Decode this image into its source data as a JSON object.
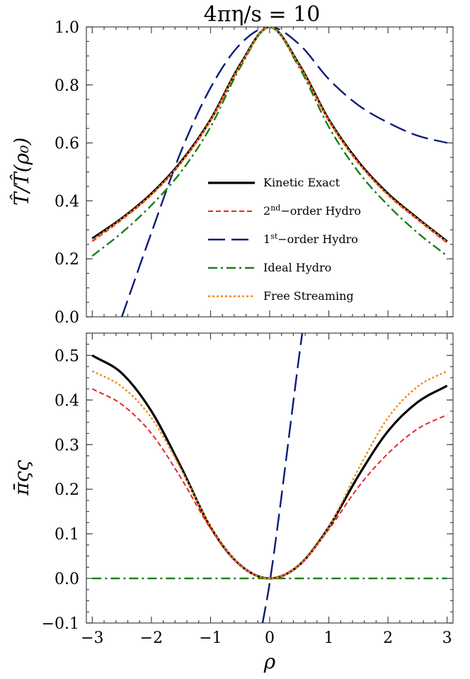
{
  "chart_data": {
    "title": "4πη/s = 10",
    "xlabel": "ρ",
    "x": [
      -3,
      -2.5,
      -2,
      -1.5,
      -1,
      -0.5,
      0,
      0.5,
      1,
      1.5,
      2,
      2.5,
      3
    ],
    "panels": [
      {
        "type": "line",
        "ylabel": "T̂/T̂(ρ₀)",
        "xlim": [
          -3.1,
          3.1
        ],
        "ylim": [
          0,
          1.0
        ],
        "xticks": [
          -3,
          -2,
          -1,
          0,
          1,
          2,
          3
        ],
        "xticklabels": [
          "",
          "",
          "",
          "",
          "",
          "",
          ""
        ],
        "yticks": [
          0,
          0.2,
          0.4,
          0.6,
          0.8,
          1.0
        ],
        "yticklabels": [
          "0.0",
          "0.2",
          "0.4",
          "0.6",
          "0.8",
          "1.0"
        ],
        "legend_position": "center",
        "series": [
          {
            "name": "Kinetic Exact",
            "color": "#000000",
            "dash": "",
            "width": 3.2,
            "values": [
              0.27,
              0.34,
              0.425,
              0.535,
              0.68,
              0.87,
              1.0,
              0.87,
              0.68,
              0.535,
              0.425,
              0.34,
              0.26
            ]
          },
          {
            "name": "2nd-order Hydro",
            "color": "#e8262b",
            "dash": "7,4",
            "width": 2,
            "values": [
              0.26,
              0.335,
              0.42,
              0.53,
              0.675,
              0.865,
              1.0,
              0.865,
              0.675,
              0.53,
              0.42,
              0.335,
              0.255
            ]
          },
          {
            "name": "1st-order Hydro",
            "color": "#0c1b7a",
            "dash": "24,9",
            "width": 2.4,
            "values": [
              null,
              0.0,
              0.29,
              0.57,
              0.79,
              0.94,
              1.0,
              0.94,
              0.82,
              0.73,
              0.67,
              0.625,
              0.6
            ]
          },
          {
            "name": "Ideal Hydro",
            "color": "#1a7f15",
            "dash": "13,5,3,5",
            "width": 2.4,
            "values": [
              0.21,
              0.29,
              0.385,
              0.5,
              0.655,
              0.86,
              1.0,
              0.86,
              0.655,
              0.5,
              0.385,
              0.29,
              0.21
            ]
          },
          {
            "name": "Free Streaming",
            "color": "#f58b12",
            "dash": "3,3",
            "width": 2.4,
            "values": [
              0.265,
              0.338,
              0.422,
              0.532,
              0.678,
              0.868,
              1.0,
              0.868,
              0.678,
              0.532,
              0.422,
              0.338,
              0.258
            ]
          }
        ]
      },
      {
        "type": "line",
        "ylabel": "π̄ςς",
        "xlim": [
          -3.1,
          3.1
        ],
        "ylim": [
          -0.1,
          0.55
        ],
        "xticks": [
          -3,
          -2,
          -1,
          0,
          1,
          2,
          3
        ],
        "xticklabels": [
          "−3",
          "−2",
          "−1",
          "0",
          "1",
          "2",
          "3"
        ],
        "yticks": [
          -0.1,
          0,
          0.1,
          0.2,
          0.3,
          0.4,
          0.5
        ],
        "yticklabels": [
          "−0.1",
          "0.0",
          "0.1",
          "0.2",
          "0.3",
          "0.4",
          "0.5"
        ],
        "series": [
          {
            "name": "Kinetic Exact",
            "color": "#000000",
            "dash": "",
            "width": 3.2,
            "values": [
              0.5,
              0.46,
              0.375,
              0.25,
              0.115,
              0.03,
              0.0,
              0.03,
              0.115,
              0.23,
              0.33,
              0.395,
              0.432
            ]
          },
          {
            "name": "2nd-order Hydro",
            "color": "#e8262b",
            "dash": "7,4",
            "width": 2,
            "values": [
              0.425,
              0.39,
              0.325,
              0.225,
              0.112,
              0.03,
              0.0,
              0.03,
              0.11,
              0.205,
              0.28,
              0.335,
              0.367
            ]
          },
          {
            "name": "1st-order Hydro",
            "color": "#0c1b7a",
            "dash": "24,9",
            "width": 2.4,
            "x": [
              -0.12,
              0,
              0.5,
              0.55
            ],
            "values": [
              -0.1,
              -0.01,
              0.5,
              0.55
            ]
          },
          {
            "name": "Ideal Hydro",
            "color": "#1a7f15",
            "dash": "13,5,3,5",
            "width": 2.4,
            "values": [
              0,
              0,
              0,
              0,
              0,
              0,
              0,
              0,
              0,
              0,
              0,
              0,
              0
            ]
          },
          {
            "name": "Free Streaming",
            "color": "#f58b12",
            "dash": "3,3",
            "width": 2.4,
            "values": [
              0.465,
              0.43,
              0.36,
              0.245,
              0.117,
              0.03,
              0.0,
              0.03,
              0.115,
              0.245,
              0.36,
              0.43,
              0.465
            ]
          }
        ]
      }
    ]
  }
}
